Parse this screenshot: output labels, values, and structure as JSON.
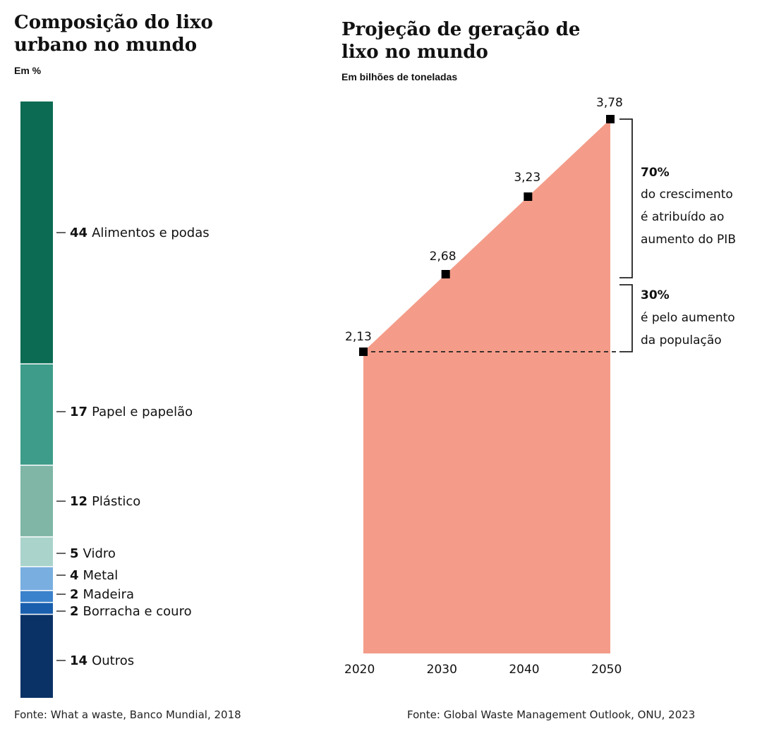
{
  "chart_data": [
    {
      "type": "bar",
      "subtype": "stacked-100",
      "title": "Composição do lixo urbano no mundo",
      "subtitle": "Em %",
      "source": "Fonte: What a waste, Banco Mundial, 2018",
      "segments": [
        {
          "value": 44,
          "label": "Alimentos e podas",
          "color": "#0b6b53"
        },
        {
          "value": 17,
          "label": "Papel e papelão",
          "color": "#3d9c8a"
        },
        {
          "value": 12,
          "label": "Plástico",
          "color": "#7fb6a6"
        },
        {
          "value": 5,
          "label": "Vidro",
          "color": "#a9d3cb"
        },
        {
          "value": 4,
          "label": "Metal",
          "color": "#79aee0"
        },
        {
          "value": 2,
          "label": "Madeira",
          "color": "#3b82cc"
        },
        {
          "value": 2,
          "label": "Borracha e couro",
          "color": "#1a5fae"
        },
        {
          "value": 14,
          "label": "Outros",
          "color": "#0b3266"
        }
      ]
    },
    {
      "type": "area",
      "title": "Projeção de geração de lixo no mundo",
      "subtitle": "Em bilhões de toneladas",
      "source": "Fonte: Global Waste Management Outlook, ONU, 2023",
      "x": [
        2020,
        2030,
        2040,
        2050
      ],
      "x_labels": [
        "2020",
        "2030",
        "2040",
        "2050"
      ],
      "values": [
        2.13,
        2.68,
        3.23,
        3.78
      ],
      "value_labels": [
        "2,13",
        "2,68",
        "3,23",
        "3,78"
      ],
      "fill_color": "#f49c89",
      "annotations": [
        {
          "pct": "70%",
          "lines": [
            "do crescimento",
            "é atribuído ao",
            "aumento do PIB"
          ]
        },
        {
          "pct": "30%",
          "lines": [
            "é pelo aumento",
            "da população"
          ]
        }
      ]
    }
  ]
}
